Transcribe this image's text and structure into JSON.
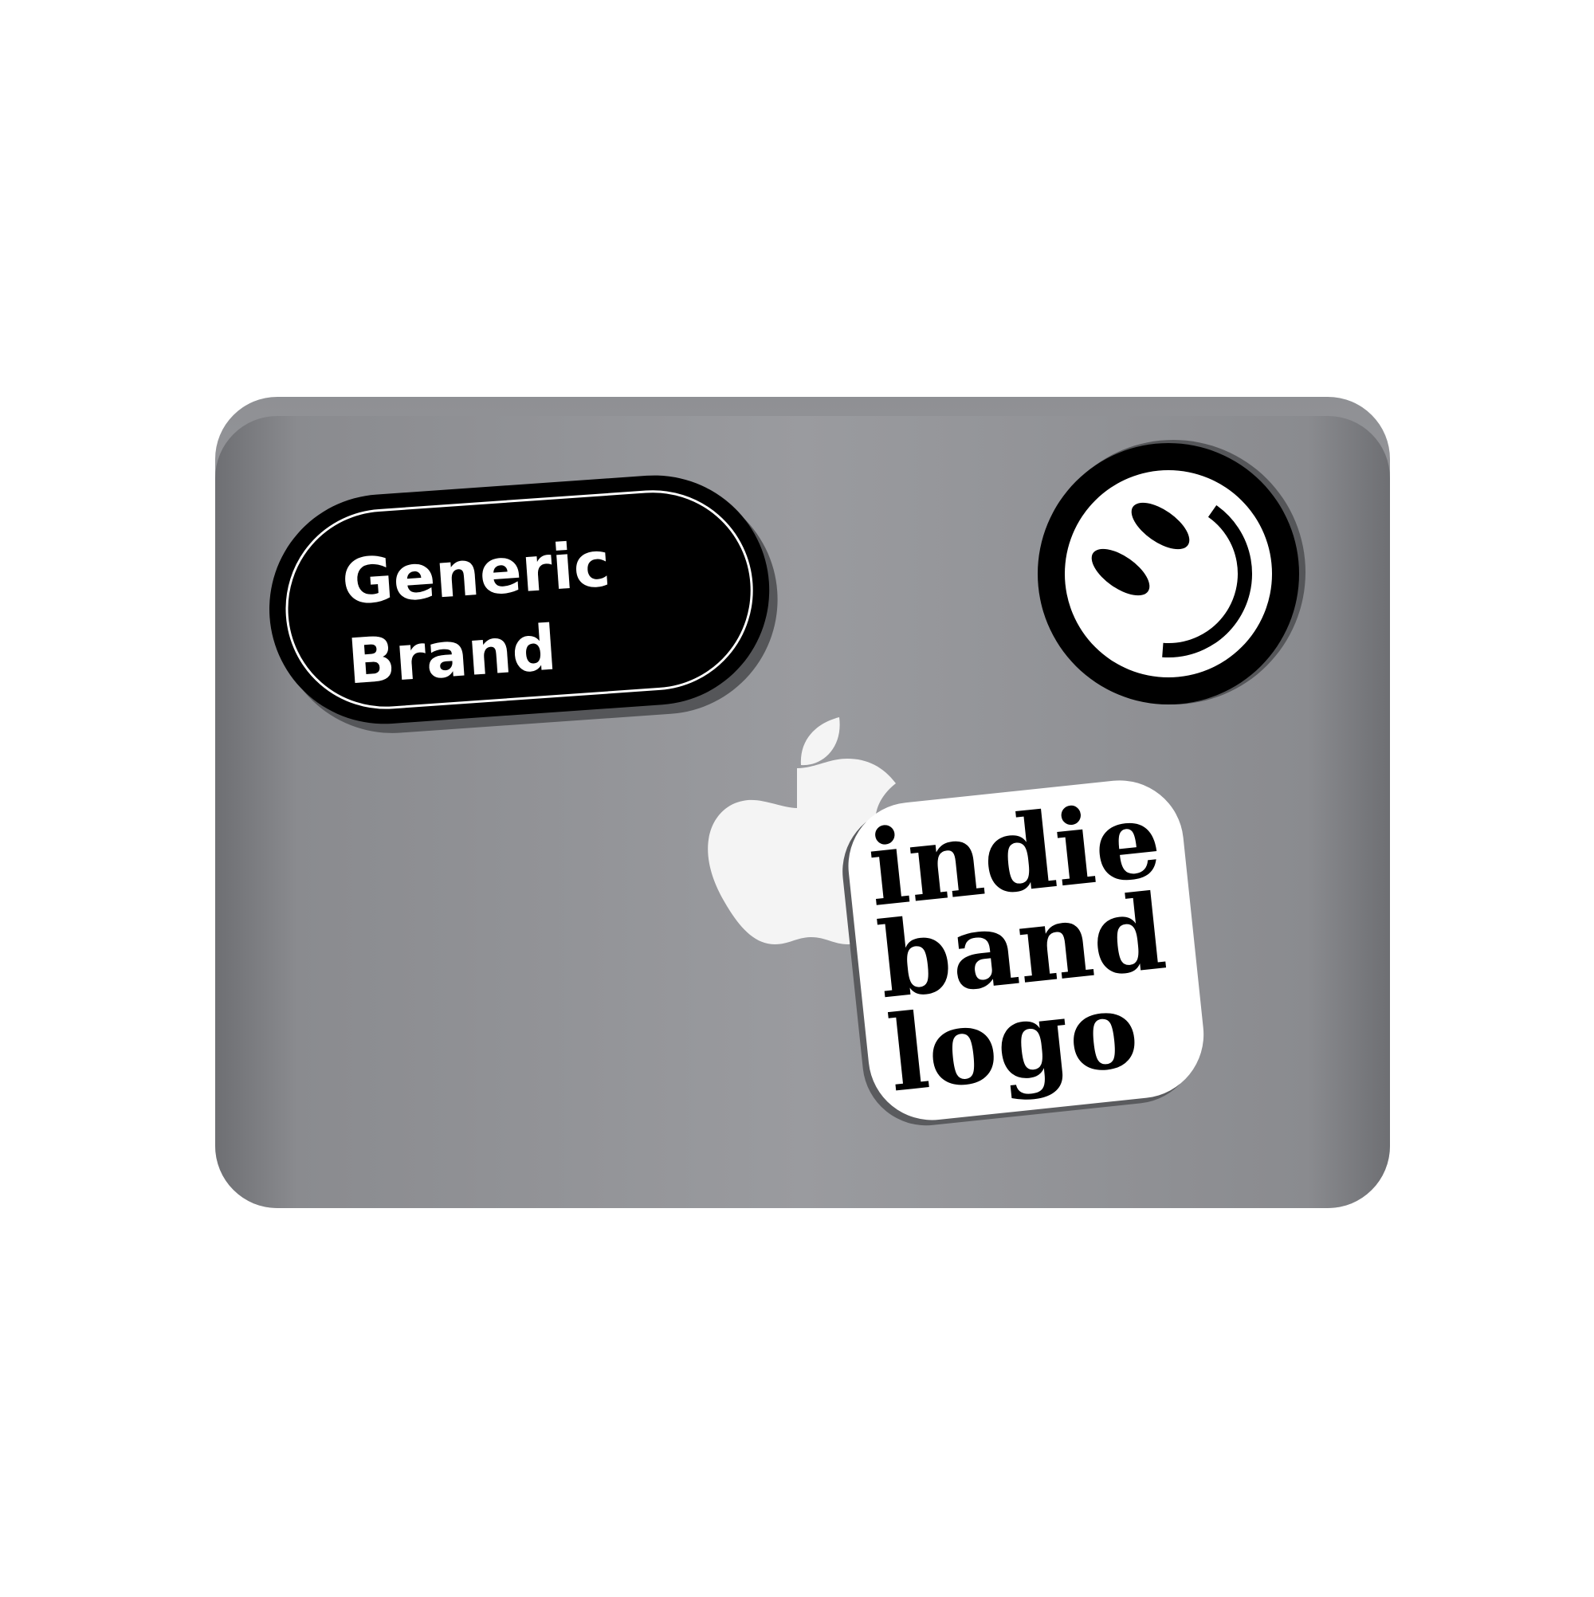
{
  "laptop": {
    "lid_color": "#97989c",
    "edge_color": "#6f7074",
    "logo_color": "#f2f2f2",
    "logo_icon": "apple-logo-icon"
  },
  "stickers": {
    "generic_brand": {
      "line1": "Generic",
      "line2": "Brand",
      "fill": "#000000",
      "text_color": "#ffffff"
    },
    "smiley": {
      "icon": "winking-smiley-icon",
      "fill": "#000000",
      "face_color": "#ffffff"
    },
    "indie_band": {
      "line1": "indie",
      "line2": "band",
      "line3": "logo",
      "text_color": "#000000",
      "outline_color": "#ffffff"
    }
  }
}
